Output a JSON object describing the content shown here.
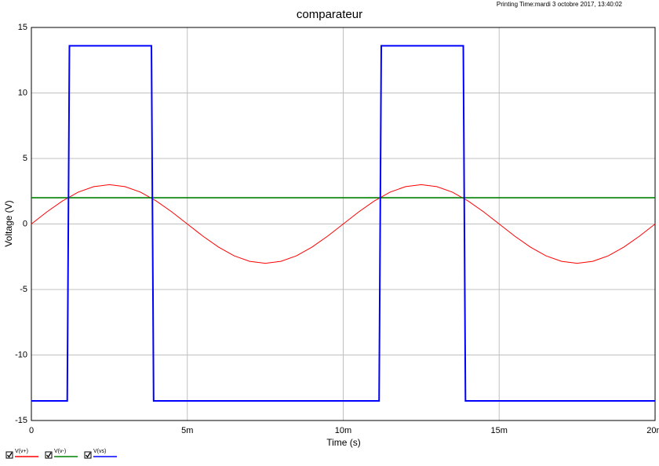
{
  "chart_data": {
    "type": "line",
    "title": "comparateur",
    "printing_time": "Printing Time:mardi 3 octobre 2017, 13:40:02",
    "x_label": "Time (s)",
    "y_label": "Voltage (V)",
    "xlim": [
      0,
      0.02
    ],
    "ylim": [
      -15,
      15
    ],
    "xticks": [
      0,
      {
        "value": 0.005,
        "label": "5m"
      },
      {
        "value": 0.01,
        "label": "10m"
      },
      {
        "value": 0.015,
        "label": "15m"
      },
      {
        "value": 0.02,
        "label": "20m"
      }
    ],
    "yticks": [
      -15,
      -10,
      -5,
      0,
      5,
      10,
      15
    ],
    "grid": true,
    "series": [
      {
        "name": "V(v+)",
        "color": "#ff0000",
        "x": [
          0,
          0.0005,
          0.001,
          0.0015,
          0.002,
          0.0025,
          0.003,
          0.0035,
          0.004,
          0.0045,
          0.005,
          0.0055,
          0.006,
          0.0065,
          0.007,
          0.0075,
          0.008,
          0.0085,
          0.009,
          0.0095,
          0.01,
          0.0105,
          0.011,
          0.0115,
          0.012,
          0.0125,
          0.013,
          0.0135,
          0.014,
          0.0145,
          0.015,
          0.0155,
          0.016,
          0.0165,
          0.017,
          0.0175,
          0.018,
          0.0185,
          0.019,
          0.0195,
          0.02
        ],
        "values": [
          0,
          0.93,
          1.76,
          2.43,
          2.85,
          3,
          2.85,
          2.43,
          1.76,
          0.93,
          0,
          -0.93,
          -1.76,
          -2.43,
          -2.85,
          -3,
          -2.85,
          -2.43,
          -1.76,
          -0.93,
          0,
          0.93,
          1.76,
          2.43,
          2.85,
          3,
          2.85,
          2.43,
          1.76,
          0.93,
          0,
          -0.93,
          -1.76,
          -2.43,
          -2.85,
          -3,
          -2.85,
          -2.43,
          -1.76,
          -0.93,
          0
        ]
      },
      {
        "name": "V(v-)",
        "color": "#008000",
        "x": [
          0,
          0.02
        ],
        "values": [
          2,
          2
        ]
      },
      {
        "name": "V(vs)",
        "color": "#0000ff",
        "x": [
          0,
          0.00115,
          0.00122,
          0.00385,
          0.00392,
          0.01115,
          0.01122,
          0.01385,
          0.01392,
          0.02
        ],
        "values": [
          -13.5,
          -13.5,
          13.6,
          13.6,
          -13.5,
          -13.5,
          13.6,
          13.6,
          -13.5,
          -13.5
        ]
      }
    ]
  }
}
